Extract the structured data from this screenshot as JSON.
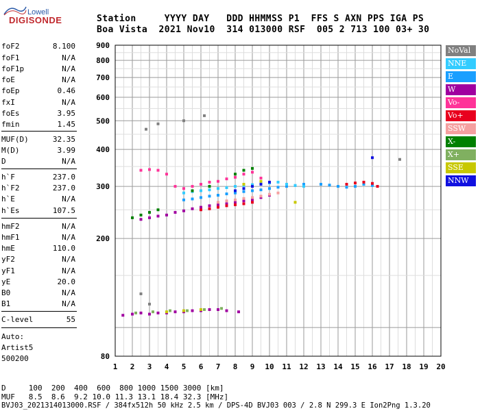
{
  "logo": {
    "line1": "Lowell",
    "line2": "DIGISONDE"
  },
  "header": {
    "line1": "Station     YYYY DAY   DDD HHMMSS P1  FFS S AXN PPS IGA PS",
    "line2": "Boa Vista  2021 Nov10  314 013000 RSF  005 2 713 100 03+ 30"
  },
  "params": [
    {
      "k": "foF2",
      "v": "8.100"
    },
    {
      "k": "foF1",
      "v": "N/A"
    },
    {
      "k": "foF1p",
      "v": "N/A"
    },
    {
      "k": "foE",
      "v": "N/A"
    },
    {
      "k": "foEp",
      "v": "0.46"
    },
    {
      "k": "fxI",
      "v": "N/A"
    },
    {
      "k": "foEs",
      "v": "3.95"
    },
    {
      "k": "fmin",
      "v": "1.45"
    },
    {
      "k": "MUF(D)",
      "v": "32.35"
    },
    {
      "k": "M(D)",
      "v": "3.99"
    },
    {
      "k": "D",
      "v": "N/A"
    },
    {
      "k": "h`F",
      "v": "237.0"
    },
    {
      "k": "h`F2",
      "v": "237.0"
    },
    {
      "k": "h`E",
      "v": "N/A"
    },
    {
      "k": "h`Es",
      "v": "107.5"
    },
    {
      "k": "hmF2",
      "v": "N/A"
    },
    {
      "k": "hmF1",
      "v": "N/A"
    },
    {
      "k": "hmE",
      "v": "110.0"
    },
    {
      "k": "yF2",
      "v": "N/A"
    },
    {
      "k": "yF1",
      "v": "N/A"
    },
    {
      "k": "yE",
      "v": "20.0"
    },
    {
      "k": "B0",
      "v": "N/A"
    },
    {
      "k": "B1",
      "v": "N/A"
    },
    {
      "k": "C-level",
      "v": "55"
    }
  ],
  "auto": {
    "l1": "Auto:",
    "l2": "Artist5",
    "l3": "500200"
  },
  "footer": {
    "d_row": "D     100  200  400  600  800 1000 1500 3000 [km]",
    "muf_row": "MUF   8.5  8.6  9.2 10.0 11.3 13.1 18.4 32.3 [MHz]",
    "info": "BVJ03_2021314013000.RSF / 384fx512h 50 kHz 2.5 km / DPS-4D BVJ03 003 / 2.8 N 299.3 E Ion2Png 1.3.20"
  },
  "legend": [
    {
      "label": "NoVal",
      "color": "#808080"
    },
    {
      "label": "NNE",
      "color": "#33ccff"
    },
    {
      "label": "E",
      "color": "#1a9fff"
    },
    {
      "label": "W",
      "color": "#a000a0"
    },
    {
      "label": "Vo-",
      "color": "#ff3399"
    },
    {
      "label": "Vo+",
      "color": "#e8001e"
    },
    {
      "label": "SSW",
      "color": "#f5a0a0"
    },
    {
      "label": "X-",
      "color": "#008000"
    },
    {
      "label": "X+",
      "color": "#80b060"
    },
    {
      "label": "SSE",
      "color": "#c8c800"
    },
    {
      "label": "NNW",
      "color": "#1010e0"
    }
  ],
  "chart_data": {
    "type": "scatter",
    "xlim": [
      1,
      20
    ],
    "ylim": [
      80,
      900
    ],
    "x_ticks": [
      "1",
      "2",
      "3",
      "4",
      "5",
      "6",
      "7",
      "8",
      "9",
      "10",
      "11",
      "12",
      "13",
      "14",
      "15",
      "16",
      "17",
      "18",
      "19",
      "20"
    ],
    "y_ticks": [
      "80",
      "200",
      "300",
      "400",
      "500",
      "600",
      "700",
      "800",
      "900"
    ],
    "y_scale": "log",
    "grid": true,
    "legend_position": "right",
    "series": [
      {
        "color": "#a000a0",
        "points": [
          [
            1.45,
            110
          ],
          [
            2,
            111
          ],
          [
            2.5,
            112
          ],
          [
            3,
            111
          ],
          [
            3.5,
            112
          ],
          [
            4,
            112
          ],
          [
            4.5,
            113
          ],
          [
            5,
            113
          ],
          [
            5.5,
            114
          ],
          [
            6,
            114
          ],
          [
            6.5,
            115
          ],
          [
            7,
            115
          ],
          [
            7.5,
            114
          ],
          [
            8.2,
            113
          ],
          [
            2.5,
            232
          ],
          [
            3,
            235
          ],
          [
            3.5,
            238
          ],
          [
            4,
            240
          ],
          [
            4.5,
            245
          ],
          [
            5,
            248
          ],
          [
            5.5,
            252
          ],
          [
            6,
            255
          ],
          [
            6.5,
            258
          ],
          [
            7,
            260
          ],
          [
            7.5,
            262
          ],
          [
            8,
            265
          ],
          [
            8.5,
            268
          ],
          [
            9,
            270
          ],
          [
            9.5,
            275
          ],
          [
            10,
            280
          ]
        ]
      },
      {
        "color": "#1a9fff",
        "points": [
          [
            5,
            270
          ],
          [
            5.5,
            272
          ],
          [
            6,
            275
          ],
          [
            6.5,
            278
          ],
          [
            7,
            280
          ],
          [
            7.5,
            283
          ],
          [
            8,
            285
          ],
          [
            8.5,
            288
          ],
          [
            9,
            290
          ],
          [
            9.5,
            292
          ],
          [
            10,
            295
          ],
          [
            10.5,
            298
          ],
          [
            11,
            300
          ],
          [
            11.5,
            302
          ],
          [
            12,
            305
          ],
          [
            13,
            305
          ],
          [
            13.5,
            303
          ],
          [
            14,
            300
          ],
          [
            14.5,
            298
          ],
          [
            15,
            300
          ],
          [
            15.5,
            305
          ],
          [
            16,
            302
          ]
        ]
      },
      {
        "color": "#33ccff",
        "points": [
          [
            5,
            285
          ],
          [
            5.5,
            288
          ],
          [
            6,
            290
          ],
          [
            6.5,
            292
          ],
          [
            7,
            295
          ],
          [
            7.5,
            297
          ],
          [
            8,
            300
          ],
          [
            8.5,
            302
          ],
          [
            9,
            304
          ],
          [
            9.5,
            306
          ],
          [
            10,
            308
          ],
          [
            10.5,
            310
          ],
          [
            11,
            305
          ],
          [
            11.5,
            302
          ],
          [
            12,
            300
          ]
        ]
      },
      {
        "color": "#e8001e",
        "points": [
          [
            6,
            250
          ],
          [
            6.5,
            252
          ],
          [
            7,
            255
          ],
          [
            7.5,
            258
          ],
          [
            8,
            260
          ],
          [
            8.5,
            262
          ],
          [
            9,
            265
          ],
          [
            14.5,
            305
          ],
          [
            15,
            308
          ],
          [
            15.5,
            310
          ],
          [
            16,
            307
          ],
          [
            16.3,
            300
          ]
        ]
      },
      {
        "color": "#ff3399",
        "points": [
          [
            2.5,
            340
          ],
          [
            3,
            342
          ],
          [
            3.5,
            340
          ],
          [
            4,
            330
          ],
          [
            4.5,
            300
          ],
          [
            5,
            295
          ],
          [
            5.5,
            300
          ],
          [
            6,
            305
          ],
          [
            6.5,
            310
          ],
          [
            7,
            312
          ],
          [
            7.5,
            318
          ],
          [
            8,
            322
          ],
          [
            8.5,
            330
          ],
          [
            9,
            335
          ],
          [
            9.5,
            320
          ]
        ]
      },
      {
        "color": "#f5a0a0",
        "points": [
          [
            7,
            265
          ],
          [
            7.5,
            268
          ],
          [
            8,
            270
          ],
          [
            8.5,
            273
          ],
          [
            9,
            275
          ],
          [
            9.5,
            278
          ],
          [
            10,
            282
          ],
          [
            10.5,
            285
          ]
        ]
      },
      {
        "color": "#008000",
        "points": [
          [
            2,
            235
          ],
          [
            2.5,
            240
          ],
          [
            3,
            245
          ],
          [
            3.5,
            250
          ],
          [
            5.5,
            290
          ],
          [
            6.5,
            300
          ],
          [
            8,
            330
          ],
          [
            8.5,
            340
          ],
          [
            9,
            345
          ]
        ]
      },
      {
        "color": "#80b060",
        "points": [
          [
            2.2,
            112
          ],
          [
            3.2,
            113
          ],
          [
            4.2,
            114
          ],
          [
            5.2,
            114
          ],
          [
            6.2,
            115
          ],
          [
            7.2,
            116
          ]
        ]
      },
      {
        "color": "#c8c800",
        "points": [
          [
            4,
            113
          ],
          [
            5,
            114
          ],
          [
            6,
            115
          ],
          [
            8.5,
            305
          ],
          [
            9.5,
            312
          ],
          [
            11.5,
            265
          ]
        ]
      },
      {
        "color": "#1010e0",
        "points": [
          [
            8,
            290
          ],
          [
            8.5,
            295
          ],
          [
            9,
            300
          ],
          [
            9.5,
            305
          ],
          [
            10,
            310
          ],
          [
            16,
            375
          ]
        ]
      },
      {
        "color": "#808080",
        "points": [
          [
            2.8,
            468
          ],
          [
            3.5,
            488
          ],
          [
            5,
            500
          ],
          [
            6.2,
            520
          ],
          [
            17.6,
            370
          ],
          [
            3,
            120
          ],
          [
            2.5,
            130
          ]
        ]
      }
    ]
  }
}
